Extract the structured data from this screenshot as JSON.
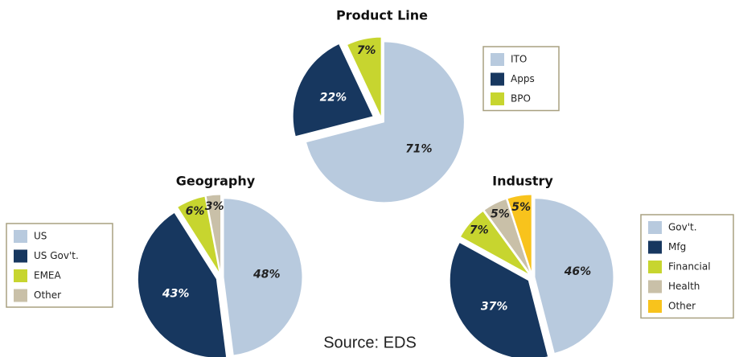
{
  "chart_data": [
    {
      "type": "pie",
      "title": "Product Line",
      "categories": [
        "ITO",
        "Apps",
        "BPO"
      ],
      "values": [
        71,
        22,
        7
      ],
      "value_labels": [
        "71%",
        "22%",
        "7%"
      ],
      "colors": [
        "#b8cade",
        "#17375f",
        "#c7d52f"
      ]
    },
    {
      "type": "pie",
      "title": "Geography",
      "categories": [
        "US",
        "US Gov't.",
        "EMEA",
        "Other"
      ],
      "values": [
        48,
        43,
        6,
        3
      ],
      "value_labels": [
        "48%",
        "43%",
        "6%",
        "3%"
      ],
      "colors": [
        "#b8cade",
        "#17375f",
        "#c7d52f",
        "#c9c0a8"
      ]
    },
    {
      "type": "pie",
      "title": "Industry",
      "categories": [
        "Gov't.",
        "Mfg",
        "Financial",
        "Health",
        "Other"
      ],
      "values": [
        46,
        37,
        7,
        5,
        5
      ],
      "value_labels": [
        "46%",
        "37%",
        "7%",
        "5%",
        "5%"
      ],
      "colors": [
        "#b8cade",
        "#17375f",
        "#c7d52f",
        "#c9c0a8",
        "#f8c31c"
      ]
    }
  ],
  "source": "Source: EDS"
}
